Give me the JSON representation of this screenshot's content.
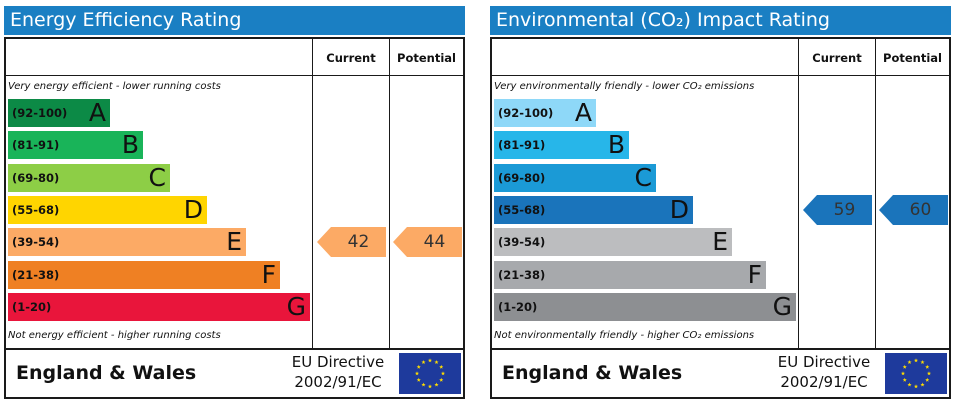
{
  "energy": {
    "title": "Energy Efficiency Rating",
    "col_current": "Current",
    "col_potential": "Potential",
    "top_caption": "Very energy efficient - lower running costs",
    "bottom_caption": "Not energy efficient - higher running costs",
    "bands": [
      {
        "range": "(92-100)",
        "letter": "A",
        "color": "#0c8a46",
        "text_color": "#111111"
      },
      {
        "range": "(81-91)",
        "letter": "B",
        "color": "#19b459",
        "text_color": "#111111"
      },
      {
        "range": "(69-80)",
        "letter": "C",
        "color": "#8dce46",
        "text_color": "#111111"
      },
      {
        "range": "(55-68)",
        "letter": "D",
        "color": "#ffd500",
        "text_color": "#111111"
      },
      {
        "range": "(39-54)",
        "letter": "E",
        "color": "#fcaa65",
        "text_color": "#111111"
      },
      {
        "range": "(21-38)",
        "letter": "F",
        "color": "#ef8023",
        "text_color": "#111111"
      },
      {
        "range": "(1-20)",
        "letter": "G",
        "color": "#e9153b",
        "text_color": "#111111"
      }
    ],
    "current": {
      "value": "42",
      "band": "E",
      "color": "#fcaa65"
    },
    "potential": {
      "value": "44",
      "band": "E",
      "color": "#fcaa65"
    },
    "footer_country": "England & Wales",
    "directive_line1": "EU Directive",
    "directive_line2": "2002/91/EC"
  },
  "environment": {
    "title": "Environmental (CO₂) Impact Rating",
    "col_current": "Current",
    "col_potential": "Potential",
    "top_caption": "Very environmentally friendly - lower CO₂ emissions",
    "bottom_caption": "Not environmentally friendly - higher CO₂ emissions",
    "bands": [
      {
        "range": "(92-100)",
        "letter": "A",
        "color": "#8ed8f8",
        "text_color": "#111111"
      },
      {
        "range": "(81-91)",
        "letter": "B",
        "color": "#27b6e9",
        "text_color": "#111111"
      },
      {
        "range": "(69-80)",
        "letter": "C",
        "color": "#1b9ad6",
        "text_color": "#111111"
      },
      {
        "range": "(55-68)",
        "letter": "D",
        "color": "#1a74bb",
        "text_color": "#111111"
      },
      {
        "range": "(39-54)",
        "letter": "E",
        "color": "#bcbdbf",
        "text_color": "#111111"
      },
      {
        "range": "(21-38)",
        "letter": "F",
        "color": "#a7a9ac",
        "text_color": "#111111"
      },
      {
        "range": "(1-20)",
        "letter": "G",
        "color": "#8d8f92",
        "text_color": "#111111"
      }
    ],
    "current": {
      "value": "59",
      "band": "D",
      "color": "#1a74bb"
    },
    "potential": {
      "value": "60",
      "band": "D",
      "color": "#1a74bb"
    },
    "footer_country": "England & Wales",
    "directive_line1": "EU Directive",
    "directive_line2": "2002/91/EC"
  },
  "icons": {
    "flag": "eu-flag-icon"
  },
  "colors": {
    "title_bar": "#1a7fc3",
    "flag_blue": "#1e3a9c",
    "flag_stars": "#ffdd00"
  }
}
